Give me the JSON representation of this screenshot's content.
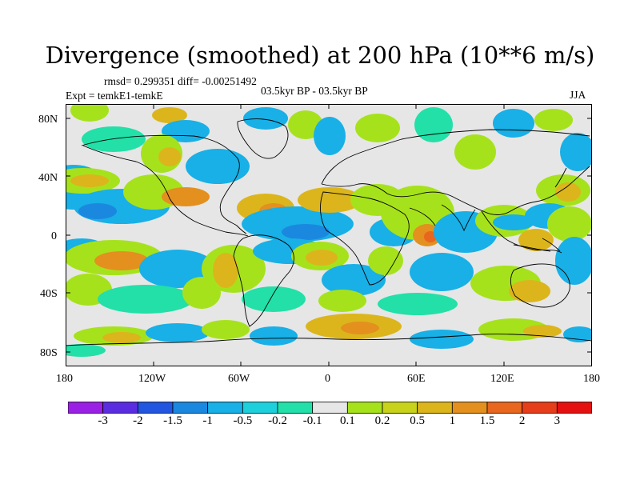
{
  "title": "Divergence (smoothed) at 200 hPa (10**6 m/s)",
  "stats": "rmsd= 0.299351 diff= -0.00251492",
  "experiment": "Expt = temkE1-temkE",
  "period": "03.5kyr BP - 03.5kyr BP",
  "season": "JJA",
  "lat_ticks": [
    "80N",
    "40N",
    "0",
    "40S",
    "80S"
  ],
  "lon_ticks": [
    "180",
    "120W",
    "60W",
    "0",
    "60E",
    "120E",
    "180"
  ],
  "colorbar": {
    "labels": [
      "-3",
      "-2",
      "-1.5",
      "-1",
      "-0.5",
      "-0.2",
      "-0.1",
      "0.1",
      "0.2",
      "0.5",
      "1",
      "1.5",
      "2",
      "3"
    ],
    "colors": [
      "#9b20e6",
      "#5a2ee0",
      "#2255e0",
      "#1b88e0",
      "#18b0e6",
      "#1ed0dc",
      "#22e0a8",
      "#e6e6e6",
      "#a6e21c",
      "#c8d21a",
      "#dcb51c",
      "#e3901f",
      "#e8661e",
      "#e63d1a",
      "#e51010"
    ]
  },
  "palette": {
    "neg_strong": "#1b88e0",
    "neg_mid": "#18b0e6",
    "neg_weak": "#22e0a8",
    "neutral": "#e6e6e6",
    "pos_weak": "#a6e21c",
    "pos_mid": "#dcb51c",
    "pos_strong": "#e3901f",
    "pos_peak": "#e8661e",
    "coast": "#000000"
  }
}
